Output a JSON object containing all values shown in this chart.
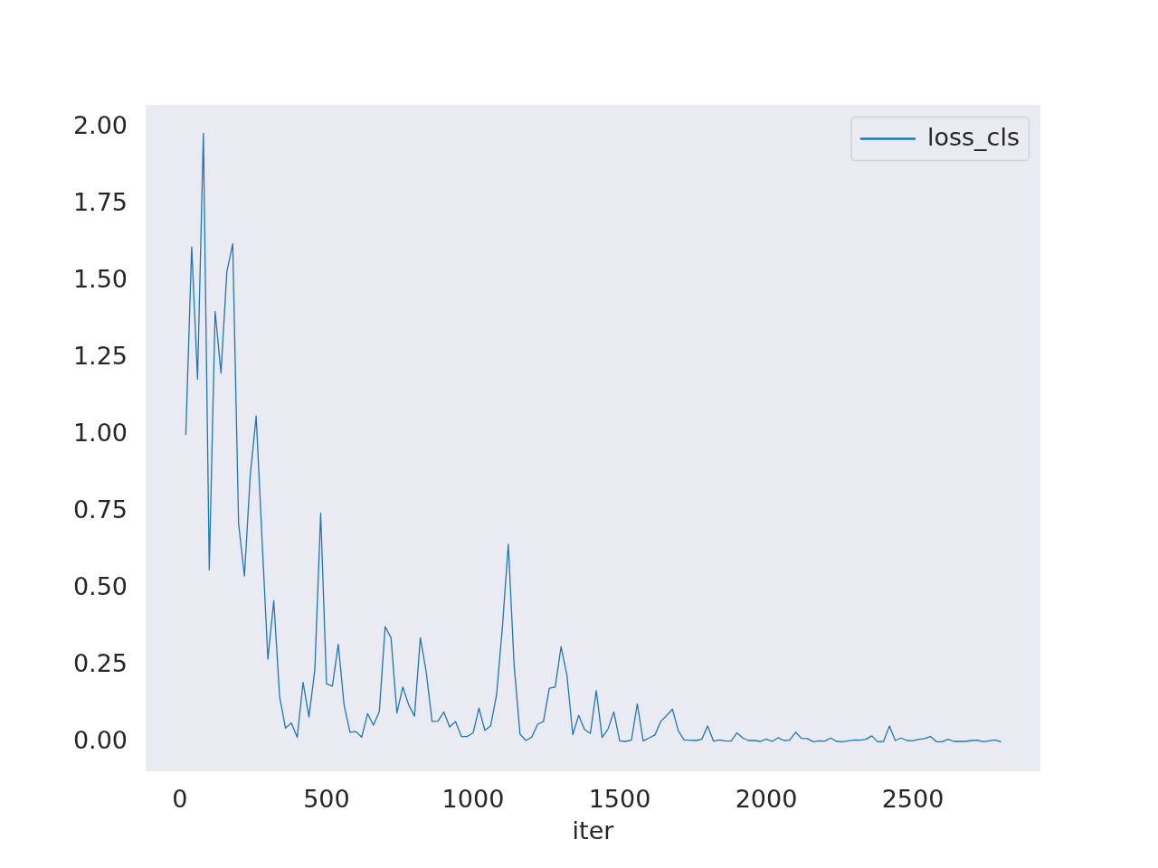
{
  "chart_data": {
    "type": "line",
    "xlabel": "iter",
    "x": [
      20,
      40,
      60,
      80,
      100,
      120,
      140,
      160,
      180,
      200,
      220,
      240,
      260,
      280,
      300,
      320,
      340,
      360,
      380,
      400,
      420,
      440,
      460,
      480,
      500,
      520,
      540,
      560,
      580,
      600,
      620,
      640,
      660,
      680,
      700,
      720,
      740,
      760,
      780,
      800,
      820,
      840,
      860,
      880,
      900,
      920,
      940,
      960,
      980,
      1000,
      1020,
      1040,
      1060,
      1080,
      1100,
      1120,
      1140,
      1160,
      1180,
      1200,
      1220,
      1240,
      1260,
      1280,
      1300,
      1320,
      1340,
      1360,
      1380,
      1400,
      1420,
      1440,
      1460,
      1480,
      1500,
      1520,
      1540,
      1560,
      1580,
      1600,
      1620,
      1640,
      1660,
      1680,
      1700,
      1720,
      1740,
      1760,
      1780,
      1800,
      1820,
      1840,
      1860,
      1880,
      1900,
      1920,
      1940,
      1960,
      1980,
      2000,
      2020,
      2040,
      2060,
      2080,
      2100,
      2120,
      2140,
      2160,
      2180,
      2200,
      2220,
      2240,
      2260,
      2280,
      2300,
      2320,
      2340,
      2360,
      2380,
      2400,
      2420,
      2440,
      2460,
      2480,
      2500,
      2520,
      2540,
      2560,
      2580,
      2600,
      2620,
      2640,
      2660,
      2680,
      2700,
      2720,
      2740,
      2760,
      2780,
      2800
    ],
    "series": [
      {
        "name": "loss_cls",
        "color": "#1f77b4",
        "values": [
          1.0,
          1.61,
          1.18,
          1.98,
          0.56,
          1.4,
          1.2,
          1.53,
          1.62,
          0.71,
          0.54,
          0.87,
          1.06,
          0.66,
          0.27,
          0.46,
          0.147,
          0.045,
          0.062,
          0.015,
          0.194,
          0.082,
          0.234,
          0.744,
          0.189,
          0.182,
          0.318,
          0.12,
          0.032,
          0.034,
          0.016,
          0.092,
          0.055,
          0.099,
          0.375,
          0.339,
          0.094,
          0.179,
          0.122,
          0.084,
          0.339,
          0.228,
          0.067,
          0.068,
          0.098,
          0.049,
          0.067,
          0.018,
          0.018,
          0.03,
          0.11,
          0.038,
          0.053,
          0.154,
          0.375,
          0.643,
          0.248,
          0.026,
          0.005,
          0.016,
          0.058,
          0.067,
          0.175,
          0.179,
          0.31,
          0.218,
          0.024,
          0.087,
          0.041,
          0.028,
          0.167,
          0.015,
          0.042,
          0.098,
          0.004,
          0.002,
          0.006,
          0.124,
          0.004,
          0.013,
          0.023,
          0.067,
          0.086,
          0.107,
          0.036,
          0.007,
          0.006,
          0.005,
          0.009,
          0.052,
          0.003,
          0.007,
          0.004,
          0.003,
          0.03,
          0.013,
          0.005,
          0.005,
          0.002,
          0.01,
          0.002,
          0.014,
          0.005,
          0.006,
          0.032,
          0.012,
          0.011,
          0.001,
          0.004,
          0.003,
          0.013,
          0.002,
          0.001,
          0.004,
          0.007,
          0.006,
          0.009,
          0.02,
          0.001,
          0.002,
          0.052,
          0.005,
          0.013,
          0.005,
          0.004,
          0.009,
          0.011,
          0.018,
          0.001,
          0.001,
          0.009,
          0.002,
          0.002,
          0.002,
          0.005,
          0.006,
          0.001,
          0.004,
          0.007,
          0.001
        ]
      }
    ],
    "xlim": [
      -117,
      2935
    ],
    "xticks": [
      0,
      500,
      1000,
      1500,
      2000,
      2500
    ],
    "ylim": [
      -0.095,
      2.072
    ],
    "yticks": [
      {
        "value": 0,
        "label": "0.00"
      },
      {
        "value": 0.25,
        "label": "0.25"
      },
      {
        "value": 0.5,
        "label": "0.50"
      },
      {
        "value": 0.75,
        "label": "0.75"
      },
      {
        "value": 1,
        "label": "1.00"
      },
      {
        "value": 1.25,
        "label": "1.25"
      },
      {
        "value": 1.5,
        "label": "1.50"
      },
      {
        "value": 1.75,
        "label": "1.75"
      },
      {
        "value": 2,
        "label": "2.00"
      }
    ],
    "grid": false,
    "legend": "top right"
  }
}
